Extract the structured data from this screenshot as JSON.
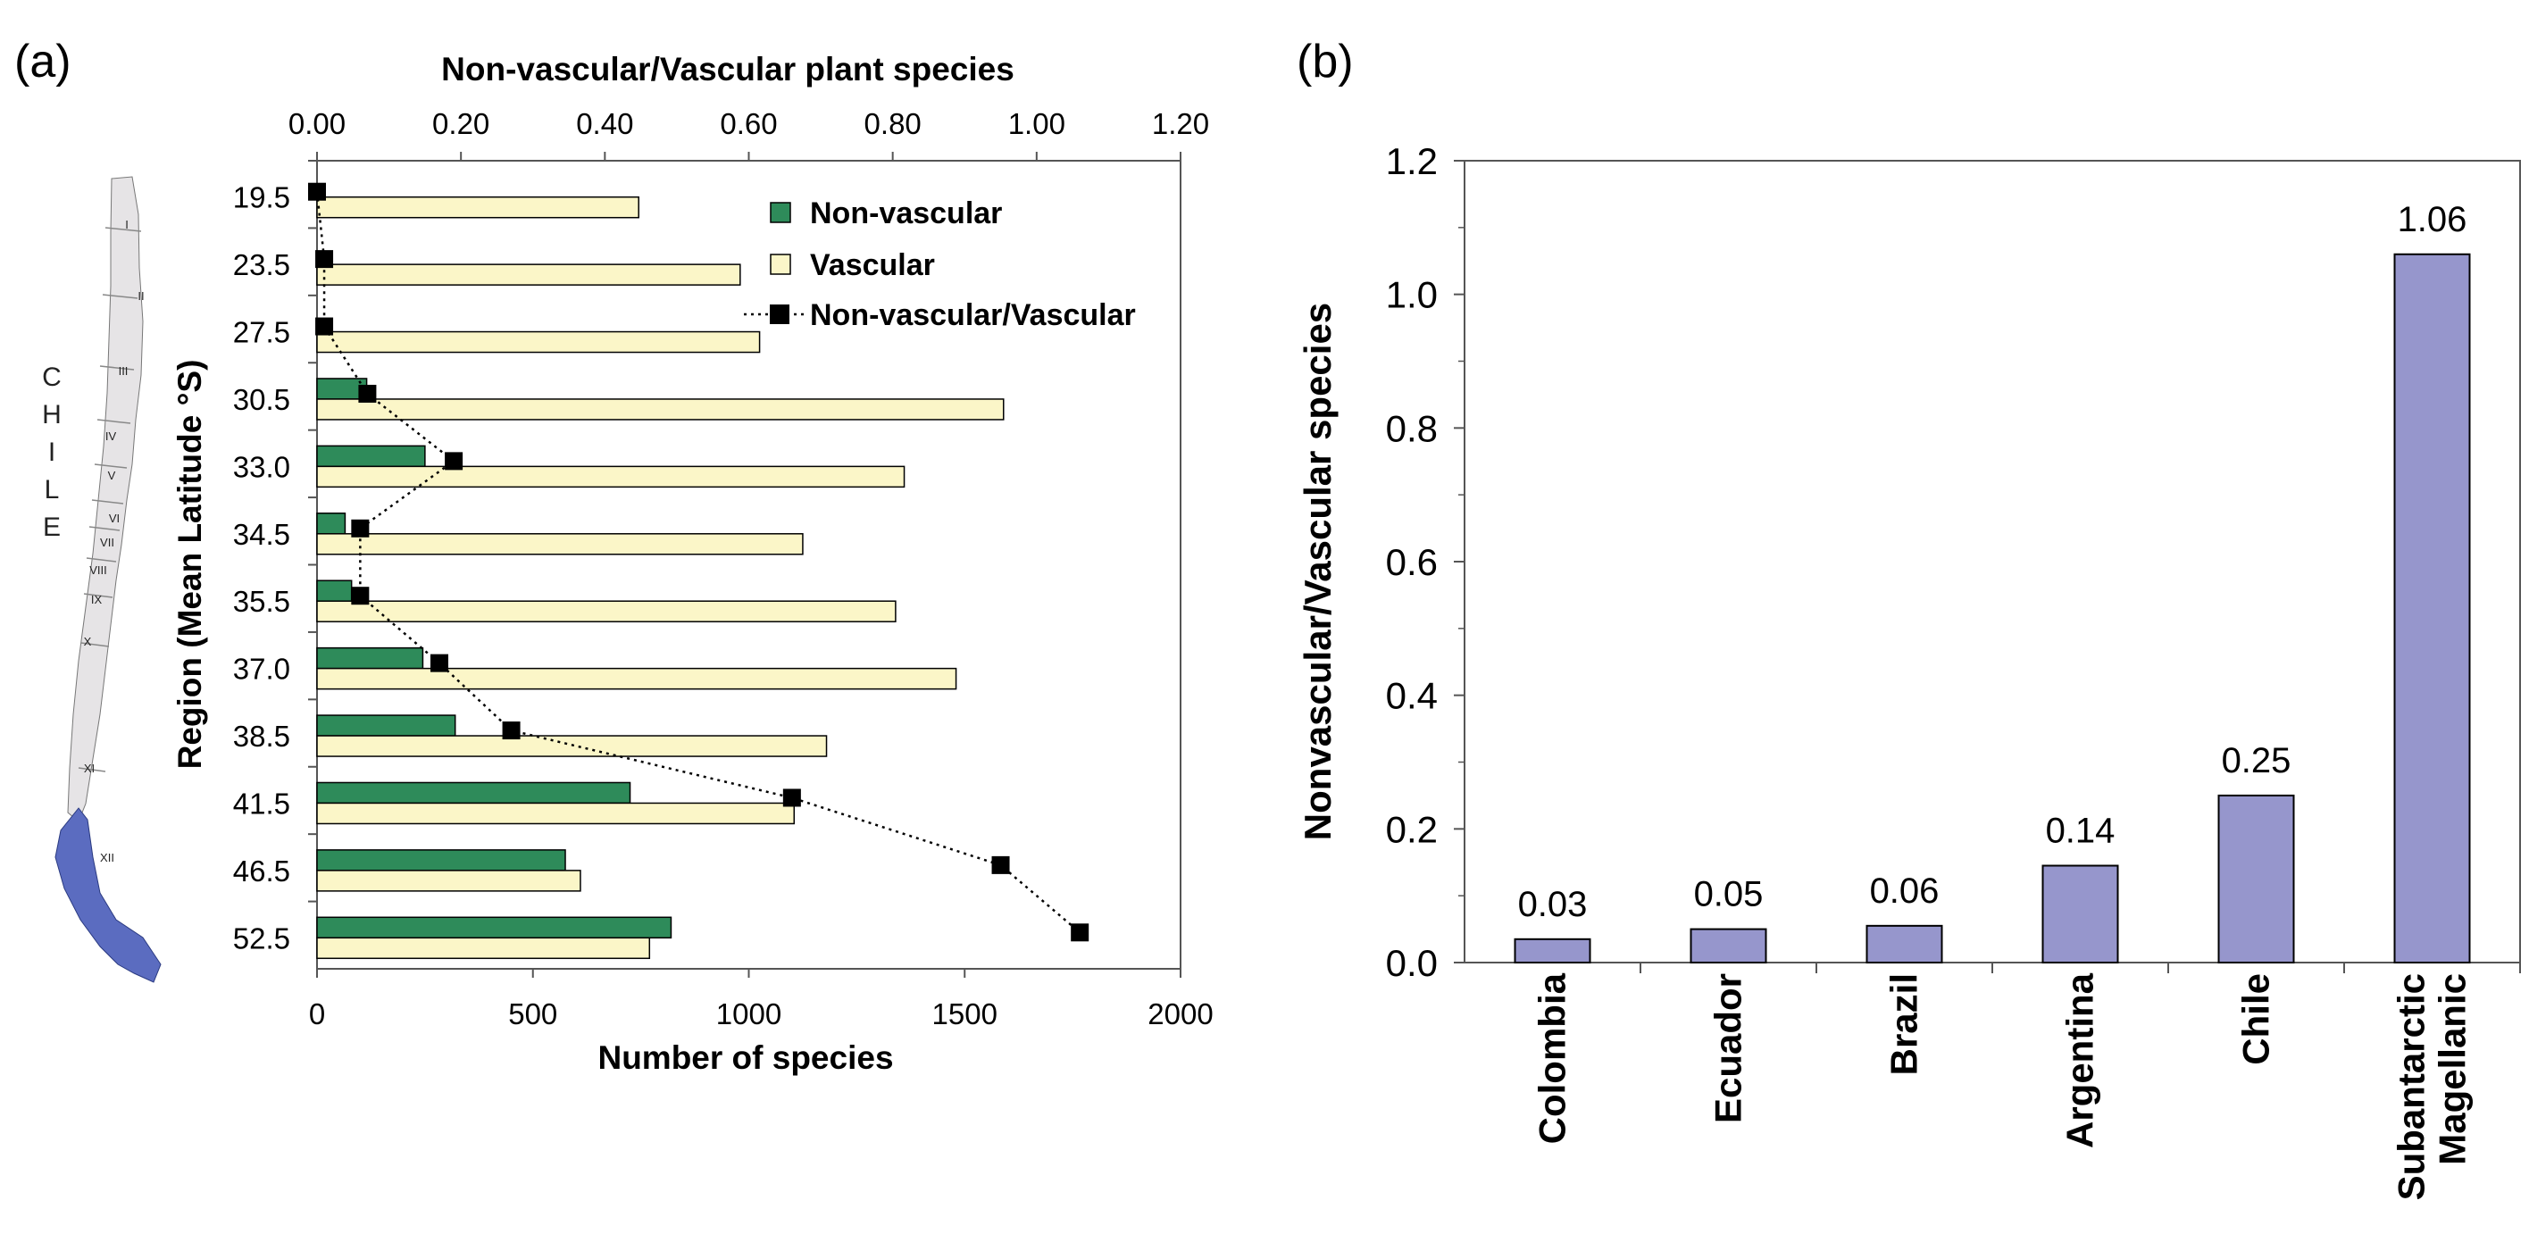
{
  "panel_labels": {
    "a": "(a)",
    "b": "(b)"
  },
  "colors": {
    "nonvascular": "#2e8b5a",
    "vascular": "#fbf6c8",
    "ratio_marker": "#000000",
    "bar_b": "#9696cc",
    "map_fill": "#e6e4e6",
    "map_highlight": "#5b6cc0"
  },
  "map": {
    "country_label": [
      "C",
      "H",
      "I",
      "L",
      "E"
    ],
    "regions": [
      "I",
      "II",
      "III",
      "IV",
      "V",
      "VI",
      "VII",
      "VIII",
      "IX",
      "X",
      "XI",
      "XII"
    ]
  },
  "chart_data": [
    {
      "type": "bar",
      "orientation": "horizontal",
      "top_axis_title": "Non-vascular/Vascular plant species",
      "top_ticks": [
        "0.00",
        "0.20",
        "0.40",
        "0.60",
        "0.80",
        "1.00",
        "1.20"
      ],
      "top_range": [
        0,
        1.2
      ],
      "xlabel": "Number of species",
      "xticks": [
        "0",
        "500",
        "1000",
        "1500",
        "2000"
      ],
      "xlim": [
        0,
        2000
      ],
      "ylabel": "Region (Mean Latitude °S)",
      "categories": [
        "19.5",
        "23.5",
        "27.5",
        "30.5",
        "33.0",
        "34.5",
        "35.5",
        "37.0",
        "38.5",
        "41.5",
        "46.5",
        "52.5"
      ],
      "series": [
        {
          "name": "Non-vascular",
          "values": [
            0,
            0,
            0,
            115,
            250,
            65,
            80,
            245,
            320,
            725,
            575,
            820
          ]
        },
        {
          "name": "Vascular",
          "values": [
            745,
            980,
            1025,
            1590,
            1360,
            1125,
            1340,
            1480,
            1180,
            1105,
            610,
            770
          ]
        },
        {
          "name": "Non-vascular/Vascular",
          "type": "line",
          "axis": "top",
          "values": [
            0.0,
            0.01,
            0.01,
            0.07,
            0.19,
            0.06,
            0.06,
            0.17,
            0.27,
            0.66,
            0.95,
            1.06
          ]
        }
      ],
      "legend_position": "top-right"
    },
    {
      "type": "bar",
      "ylabel": "Nonvascular/Vascular species",
      "yticks": [
        "0.0",
        "0.2",
        "0.4",
        "0.6",
        "0.8",
        "1.0",
        "1.2"
      ],
      "ylim": [
        0,
        1.2
      ],
      "categories": [
        [
          "Colombia"
        ],
        [
          "Ecuador"
        ],
        [
          "Brazil"
        ],
        [
          "Argentina"
        ],
        [
          "Chile"
        ],
        [
          "Subantarctic",
          "Magellanic"
        ]
      ],
      "values": [
        0.035,
        0.05,
        0.055,
        0.145,
        0.25,
        1.06
      ],
      "data_labels": [
        "0.03",
        "0.05",
        "0.06",
        "0.14",
        "0.25",
        "1.06"
      ]
    }
  ]
}
